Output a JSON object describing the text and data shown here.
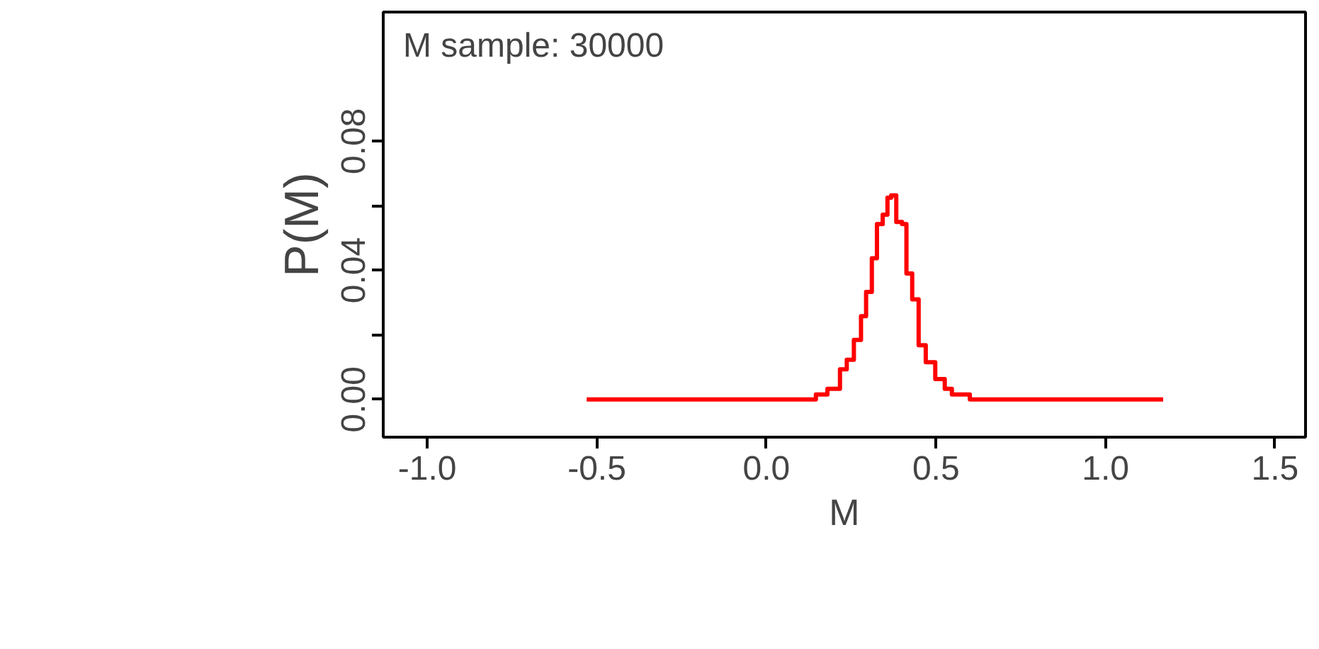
{
  "chart_data": {
    "type": "step",
    "xlabel": "M",
    "ylabel": "P(M)",
    "annotations": [
      "M sample: 30000"
    ],
    "xlim": [
      -1.13,
      1.59
    ],
    "ylim": [
      -0.0117,
      0.12
    ],
    "xticks": [
      {
        "value": -1.0,
        "label": "-1.0"
      },
      {
        "value": -0.5,
        "label": "-0.5"
      },
      {
        "value": 0.0,
        "label": "0.0"
      },
      {
        "value": 0.5,
        "label": "0.5"
      },
      {
        "value": 1.0,
        "label": "1.0"
      },
      {
        "value": 1.5,
        "label": "1.5"
      }
    ],
    "yticks": [
      {
        "value": 0,
        "label": "0.00"
      },
      {
        "value": 0.02,
        "label": null
      },
      {
        "value": 0.04,
        "label": "0.04"
      },
      {
        "value": 0.06,
        "label": null
      },
      {
        "value": 0.08,
        "label": "0.08"
      }
    ],
    "grid": false,
    "line_style": "solid",
    "series": [
      {
        "color": "#ff0000",
        "x": [
          -0.53,
          0.146,
          0.18,
          0.217,
          0.237,
          0.258,
          0.279,
          0.294,
          0.311,
          0.326,
          0.343,
          0.357,
          0.368,
          0.383,
          0.4,
          0.413,
          0.43,
          0.449,
          0.47,
          0.498,
          0.526,
          0.547,
          0.6,
          1.17
        ],
        "values": [
          0,
          0.0015,
          0.0033,
          0.0093,
          0.0123,
          0.0184,
          0.0258,
          0.0333,
          0.0437,
          0.0543,
          0.0572,
          0.0625,
          0.0632,
          0.055,
          0.0543,
          0.039,
          0.031,
          0.0168,
          0.0115,
          0.0063,
          0.0033,
          0.0015,
          0,
          0
        ]
      }
    ]
  }
}
